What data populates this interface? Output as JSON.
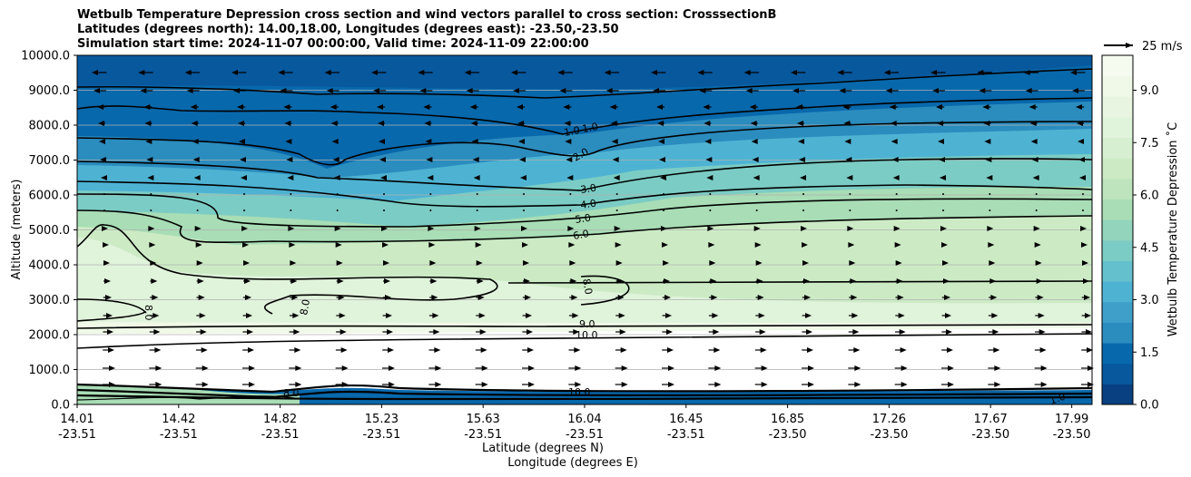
{
  "chart_data": {
    "type": "contour",
    "title_lines": [
      "Wetbulb Temperature Depression cross section and wind vectors parallel to cross section: CrosssectionB",
      "Latitudes (degrees north): 14.00,18.00, Longitudes (degrees east): -23.50,-23.50",
      "Simulation start time: 2024-11-07 00:00:00, Valid time: 2024-11-09 22:00:00"
    ],
    "ylabel": "Altitude (meters)",
    "xlabel_lat": "Latitude (degrees N)",
    "xlabel_lon": "Longitude (degrees E)",
    "ylim": [
      0,
      10000
    ],
    "yticks": [
      "0.0",
      "1000.0",
      "2000.0",
      "3000.0",
      "4000.0",
      "5000.0",
      "6000.0",
      "7000.0",
      "8000.0",
      "9000.0",
      "10000.0"
    ],
    "xticks": [
      {
        "lat": "14.01",
        "lon": "-23.51"
      },
      {
        "lat": "14.42",
        "lon": "-23.51"
      },
      {
        "lat": "14.82",
        "lon": "-23.51"
      },
      {
        "lat": "15.23",
        "lon": "-23.51"
      },
      {
        "lat": "15.63",
        "lon": "-23.51"
      },
      {
        "lat": "16.04",
        "lon": "-23.51"
      },
      {
        "lat": "16.45",
        "lon": "-23.51"
      },
      {
        "lat": "16.85",
        "lon": "-23.50"
      },
      {
        "lat": "17.26",
        "lon": "-23.50"
      },
      {
        "lat": "17.67",
        "lon": "-23.50"
      },
      {
        "lat": "17.99",
        "lon": "-23.50"
      }
    ],
    "colorbar": {
      "label": "Wetbulb Temperature Depression ˚C",
      "range": [
        0,
        10
      ],
      "ticks": [
        "0.0",
        "1.5",
        "3.0",
        "4.5",
        "6.0",
        "7.5",
        "9.0"
      ],
      "colormap": "GnBu_r"
    },
    "quiver_key": {
      "label": "25 m/s"
    },
    "contour_labels": [
      "1.0",
      "1.0",
      "2.0",
      "3.0",
      "4.0",
      "5.0",
      "6.0",
      "8.0",
      "8.0",
      "8.0",
      "9.0",
      "10.0",
      "8.0",
      "10.0",
      "1.0"
    ],
    "grid": "horizontal"
  }
}
